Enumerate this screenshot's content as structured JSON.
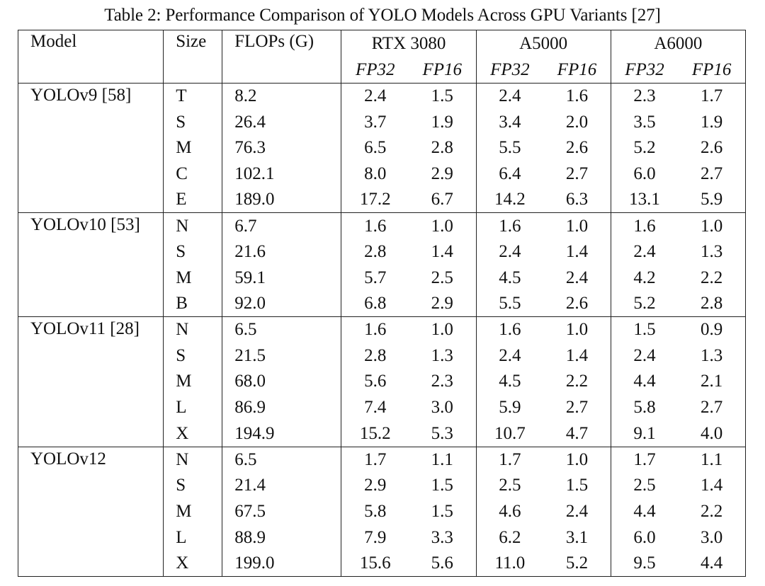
{
  "caption": "Table 2: Performance Comparison of YOLO Models Across GPU Variants [27]",
  "headers": {
    "model": "Model",
    "size": "Size",
    "flops": "FLOPs (G)",
    "gpus": [
      "RTX 3080",
      "A5000",
      "A6000"
    ],
    "precisions": [
      "FP32",
      "FP16",
      "FP32",
      "FP16",
      "FP32",
      "FP16"
    ]
  },
  "groups": [
    {
      "model": "YOLOv9 [58]",
      "rows": [
        {
          "size": "T",
          "flops": "8.2",
          "vals": [
            "2.4",
            "1.5",
            "2.4",
            "1.6",
            "2.3",
            "1.7"
          ]
        },
        {
          "size": "S",
          "flops": "26.4",
          "vals": [
            "3.7",
            "1.9",
            "3.4",
            "2.0",
            "3.5",
            "1.9"
          ]
        },
        {
          "size": "M",
          "flops": "76.3",
          "vals": [
            "6.5",
            "2.8",
            "5.5",
            "2.6",
            "5.2",
            "2.6"
          ]
        },
        {
          "size": "C",
          "flops": "102.1",
          "vals": [
            "8.0",
            "2.9",
            "6.4",
            "2.7",
            "6.0",
            "2.7"
          ]
        },
        {
          "size": "E",
          "flops": "189.0",
          "vals": [
            "17.2",
            "6.7",
            "14.2",
            "6.3",
            "13.1",
            "5.9"
          ]
        }
      ]
    },
    {
      "model": "YOLOv10 [53]",
      "rows": [
        {
          "size": "N",
          "flops": "6.7",
          "vals": [
            "1.6",
            "1.0",
            "1.6",
            "1.0",
            "1.6",
            "1.0"
          ]
        },
        {
          "size": "S",
          "flops": "21.6",
          "vals": [
            "2.8",
            "1.4",
            "2.4",
            "1.4",
            "2.4",
            "1.3"
          ]
        },
        {
          "size": "M",
          "flops": "59.1",
          "vals": [
            "5.7",
            "2.5",
            "4.5",
            "2.4",
            "4.2",
            "2.2"
          ]
        },
        {
          "size": "B",
          "flops": "92.0",
          "vals": [
            "6.8",
            "2.9",
            "5.5",
            "2.6",
            "5.2",
            "2.8"
          ]
        }
      ]
    },
    {
      "model": "YOLOv11 [28]",
      "rows": [
        {
          "size": "N",
          "flops": "6.5",
          "vals": [
            "1.6",
            "1.0",
            "1.6",
            "1.0",
            "1.5",
            "0.9"
          ]
        },
        {
          "size": "S",
          "flops": "21.5",
          "vals": [
            "2.8",
            "1.3",
            "2.4",
            "1.4",
            "2.4",
            "1.3"
          ]
        },
        {
          "size": "M",
          "flops": "68.0",
          "vals": [
            "5.6",
            "2.3",
            "4.5",
            "2.2",
            "4.4",
            "2.1"
          ]
        },
        {
          "size": "L",
          "flops": "86.9",
          "vals": [
            "7.4",
            "3.0",
            "5.9",
            "2.7",
            "5.8",
            "2.7"
          ]
        },
        {
          "size": "X",
          "flops": "194.9",
          "vals": [
            "15.2",
            "5.3",
            "10.7",
            "4.7",
            "9.1",
            "4.0"
          ]
        }
      ]
    },
    {
      "model": "YOLOv12",
      "rows": [
        {
          "size": "N",
          "flops": "6.5",
          "vals": [
            "1.7",
            "1.1",
            "1.7",
            "1.0",
            "1.7",
            "1.1"
          ]
        },
        {
          "size": "S",
          "flops": "21.4",
          "vals": [
            "2.9",
            "1.5",
            "2.5",
            "1.5",
            "2.5",
            "1.4"
          ]
        },
        {
          "size": "M",
          "flops": "67.5",
          "vals": [
            "5.8",
            "1.5",
            "4.6",
            "2.4",
            "4.4",
            "2.2"
          ]
        },
        {
          "size": "L",
          "flops": "88.9",
          "vals": [
            "7.9",
            "3.3",
            "6.2",
            "3.1",
            "6.0",
            "3.0"
          ]
        },
        {
          "size": "X",
          "flops": "199.0",
          "vals": [
            "15.6",
            "5.6",
            "11.0",
            "5.2",
            "9.5",
            "4.4"
          ]
        }
      ]
    }
  ]
}
